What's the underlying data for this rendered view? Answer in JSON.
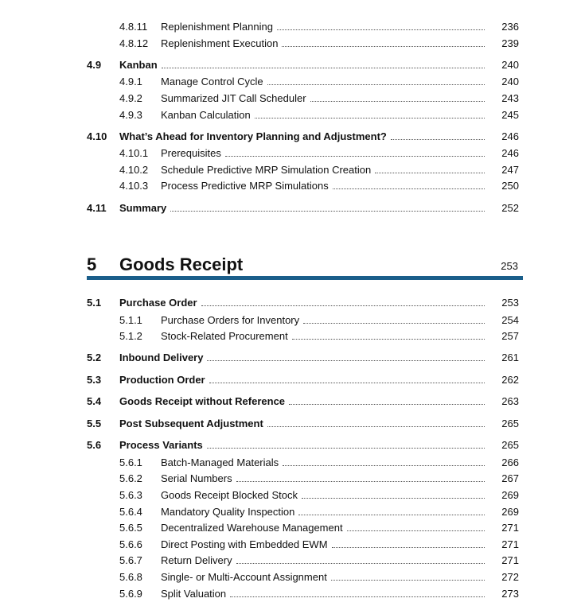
{
  "rows_before": [
    {
      "level": "sub",
      "num": "4.8.11",
      "title": "Replenishment Planning",
      "page": "236"
    },
    {
      "level": "sub",
      "num": "4.8.12",
      "title": "Replenishment Execution",
      "page": "239"
    },
    {
      "level": "sec",
      "num": "4.9",
      "title": "Kanban",
      "page": "240"
    },
    {
      "level": "sub",
      "num": "4.9.1",
      "title": "Manage Control Cycle",
      "page": "240"
    },
    {
      "level": "sub",
      "num": "4.9.2",
      "title": "Summarized JIT Call Scheduler",
      "page": "243"
    },
    {
      "level": "sub",
      "num": "4.9.3",
      "title": "Kanban Calculation",
      "page": "245"
    },
    {
      "level": "sec",
      "num": "4.10",
      "title": "What’s Ahead for Inventory Planning and Adjustment?",
      "page": "246"
    },
    {
      "level": "sub",
      "num": "4.10.1",
      "title": "Prerequisites",
      "page": "246"
    },
    {
      "level": "sub",
      "num": "4.10.2",
      "title": "Schedule Predictive MRP Simulation Creation",
      "page": "247"
    },
    {
      "level": "sub",
      "num": "4.10.3",
      "title": "Process Predictive MRP Simulations",
      "page": "250"
    },
    {
      "level": "sec",
      "num": "4.11",
      "title": "Summary",
      "page": "252"
    }
  ],
  "chapter": {
    "num": "5",
    "title": "Goods Receipt",
    "page": "253",
    "accent": "#1a5e8a"
  },
  "rows_after": [
    {
      "level": "sec",
      "num": "5.1",
      "title": "Purchase Order",
      "page": "253"
    },
    {
      "level": "sub",
      "num": "5.1.1",
      "title": "Purchase Orders for Inventory",
      "page": "254"
    },
    {
      "level": "sub",
      "num": "5.1.2",
      "title": "Stock-Related Procurement",
      "page": "257"
    },
    {
      "level": "sec",
      "num": "5.2",
      "title": "Inbound Delivery",
      "page": "261"
    },
    {
      "level": "sec",
      "num": "5.3",
      "title": "Production Order",
      "page": "262"
    },
    {
      "level": "sec",
      "num": "5.4",
      "title": "Goods Receipt without Reference",
      "page": "263"
    },
    {
      "level": "sec",
      "num": "5.5",
      "title": "Post Subsequent Adjustment",
      "page": "265"
    },
    {
      "level": "sec",
      "num": "5.6",
      "title": "Process Variants",
      "page": "265"
    },
    {
      "level": "sub",
      "num": "5.6.1",
      "title": "Batch-Managed Materials",
      "page": "266"
    },
    {
      "level": "sub",
      "num": "5.6.2",
      "title": "Serial Numbers",
      "page": "267"
    },
    {
      "level": "sub",
      "num": "5.6.3",
      "title": "Goods Receipt Blocked Stock",
      "page": "269"
    },
    {
      "level": "sub",
      "num": "5.6.4",
      "title": "Mandatory Quality Inspection",
      "page": "269"
    },
    {
      "level": "sub",
      "num": "5.6.5",
      "title": "Decentralized Warehouse Management",
      "page": "271"
    },
    {
      "level": "sub",
      "num": "5.6.6",
      "title": "Direct Posting with Embedded EWM",
      "page": "271"
    },
    {
      "level": "sub",
      "num": "5.6.7",
      "title": "Return Delivery",
      "page": "271"
    },
    {
      "level": "sub",
      "num": "5.6.8",
      "title": "Single- or Multi-Account Assignment",
      "page": "272"
    },
    {
      "level": "sub",
      "num": "5.6.9",
      "title": "Split Valuation",
      "page": "273"
    }
  ]
}
